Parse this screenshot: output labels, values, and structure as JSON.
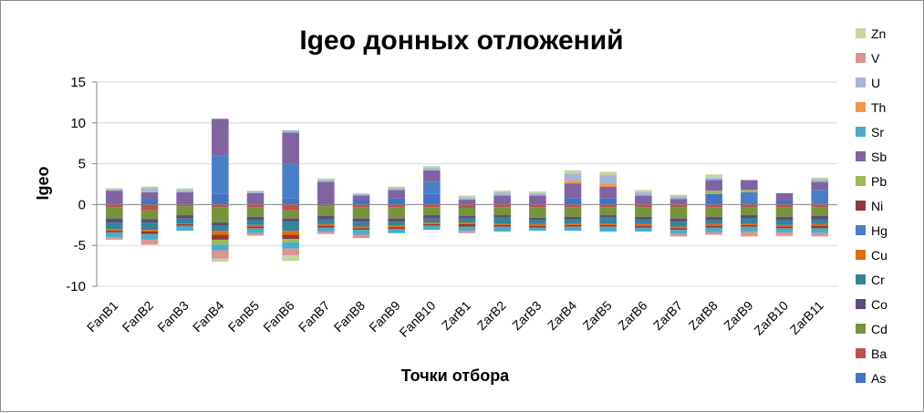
{
  "chart_data": {
    "type": "bar",
    "stacked": true,
    "title": "Igeo донных отложений",
    "xlabel": "Точки отбора",
    "ylabel": "Igeo",
    "ylim": [
      -10,
      15
    ],
    "yticks": [
      15,
      10,
      5,
      0,
      -5,
      -10
    ],
    "grid": true,
    "legend_position": "right",
    "categories": [
      "FanB1",
      "FanB2",
      "FanB3",
      "FanB4",
      "FanB5",
      "FanB6",
      "FanB7",
      "FanB8",
      "FanB9",
      "FanB10",
      "ZarB1",
      "ZarB2",
      "ZarB3",
      "ZarB4",
      "ZarB5",
      "ZarB6",
      "ZarB7",
      "ZarB8",
      "ZarB9",
      "ZarB10",
      "ZarB11"
    ],
    "series": [
      {
        "name": "As",
        "color": "#4472c4",
        "values": [
          0.0,
          0.6,
          0.0,
          1.3,
          0.0,
          0.8,
          0.0,
          0.6,
          0.8,
          1.3,
          0.0,
          0.0,
          0.0,
          0.8,
          0.8,
          0.0,
          0.0,
          1.3,
          0.0,
          0.5,
          0.0
        ]
      },
      {
        "name": "Ba",
        "color": "#c0504d",
        "values": [
          -0.3,
          -0.7,
          -0.2,
          -0.3,
          -0.3,
          -0.7,
          -0.2,
          -0.3,
          -0.3,
          -0.3,
          -0.4,
          -0.3,
          -0.3,
          -0.3,
          -0.3,
          -0.3,
          -0.3,
          -0.3,
          -0.3,
          -0.3,
          -0.3
        ]
      },
      {
        "name": "Cd",
        "color": "#77933c",
        "values": [
          -1.4,
          -1.1,
          -1.1,
          -1.9,
          -1.2,
          -1.0,
          -1.2,
          -1.4,
          -1.4,
          -1.0,
          -1.0,
          -1.0,
          -1.3,
          -1.2,
          -1.0,
          -1.2,
          -1.4,
          -1.2,
          -1.0,
          -1.2,
          -1.1
        ]
      },
      {
        "name": "Co",
        "color": "#604a7b",
        "values": [
          -0.5,
          -0.4,
          -0.4,
          -0.4,
          -0.4,
          -0.4,
          -0.4,
          -0.4,
          -0.4,
          -0.4,
          -0.3,
          -0.3,
          -0.3,
          -0.3,
          -0.3,
          -0.3,
          -0.4,
          -0.4,
          -0.4,
          -0.4,
          -0.4
        ]
      },
      {
        "name": "Cr",
        "color": "#31859c",
        "values": [
          -0.8,
          -0.9,
          -0.6,
          -0.6,
          -0.6,
          -1.1,
          -0.6,
          -0.6,
          -0.5,
          -0.5,
          -0.5,
          -0.7,
          -0.5,
          -0.5,
          -0.7,
          -0.6,
          -0.6,
          -0.5,
          -0.6,
          -0.6,
          -0.6
        ]
      },
      {
        "name": "Cu",
        "color": "#e46c0a",
        "values": [
          -0.2,
          -0.2,
          -0.1,
          -0.5,
          -0.2,
          -0.5,
          -0.2,
          -0.2,
          -0.2,
          -0.2,
          -0.2,
          -0.2,
          -0.2,
          -0.2,
          -0.2,
          -0.2,
          -0.2,
          -0.2,
          -0.2,
          -0.2,
          -0.2
        ]
      },
      {
        "name": "Hg",
        "color": "#4a7ec7",
        "values": [
          0.0,
          0.0,
          0.0,
          4.7,
          0.0,
          4.2,
          0.0,
          0.0,
          0.0,
          1.5,
          0.0,
          0.0,
          0.0,
          0.0,
          0.0,
          0.0,
          0.0,
          0.0,
          1.5,
          0.0,
          1.8
        ]
      },
      {
        "name": "Ni",
        "color": "#953735",
        "values": [
          -0.2,
          -0.3,
          -0.2,
          -0.6,
          -0.2,
          -0.5,
          -0.2,
          -0.2,
          -0.2,
          -0.2,
          -0.3,
          -0.2,
          -0.2,
          -0.2,
          -0.2,
          -0.2,
          -0.2,
          -0.2,
          -0.2,
          -0.2,
          -0.3
        ]
      },
      {
        "name": "Pb",
        "color": "#9bbb59",
        "values": [
          0.0,
          0.0,
          0.0,
          -0.6,
          0.0,
          -0.4,
          0.0,
          0.0,
          0.0,
          0.0,
          0.0,
          0.0,
          0.0,
          0.0,
          0.0,
          0.0,
          0.0,
          0.4,
          0.3,
          0.0,
          0.0
        ]
      },
      {
        "name": "Sb",
        "color": "#8064a2",
        "values": [
          1.7,
          0.9,
          1.5,
          4.5,
          1.4,
          3.8,
          2.8,
          0.5,
          1.0,
          1.4,
          0.6,
          1.1,
          1.1,
          1.8,
          1.4,
          1.1,
          0.7,
          1.3,
          1.2,
          0.9,
          1.0
        ]
      },
      {
        "name": "Sr",
        "color": "#4bacc6",
        "values": [
          -0.6,
          -0.7,
          -0.6,
          -0.7,
          -0.6,
          -0.8,
          -0.5,
          -0.6,
          -0.5,
          -0.5,
          -0.5,
          -0.6,
          -0.4,
          -0.5,
          -0.6,
          -0.5,
          -0.5,
          -0.6,
          -0.6,
          -0.5,
          -0.6
        ]
      },
      {
        "name": "Th",
        "color": "#f79646",
        "values": [
          0.0,
          0.0,
          0.0,
          0.0,
          0.0,
          0.0,
          0.0,
          0.0,
          0.0,
          0.0,
          0.0,
          0.0,
          0.0,
          0.3,
          0.4,
          0.0,
          0.0,
          0.0,
          0.0,
          0.0,
          0.0
        ]
      },
      {
        "name": "U",
        "color": "#a5b6da",
        "values": [
          0.2,
          0.5,
          0.3,
          0.0,
          0.2,
          0.3,
          0.2,
          0.2,
          0.2,
          0.3,
          0.3,
          0.4,
          0.3,
          0.9,
          1.0,
          0.4,
          0.3,
          0.3,
          0.0,
          0.0,
          0.3
        ]
      },
      {
        "name": "V",
        "color": "#d99694",
        "values": [
          -0.3,
          -0.6,
          0.0,
          -1.0,
          -0.3,
          -0.8,
          -0.3,
          -0.4,
          0.0,
          0.0,
          -0.3,
          0.0,
          0.0,
          0.0,
          0.0,
          0.0,
          -0.3,
          -0.3,
          -0.6,
          -0.4,
          -0.4
        ]
      },
      {
        "name": "Zn",
        "color": "#c3d69b",
        "values": [
          0.1,
          0.2,
          0.2,
          0.0,
          0.1,
          0.0,
          0.2,
          0.1,
          0.2,
          0.2,
          0.2,
          0.2,
          0.2,
          0.4,
          0.4,
          0.3,
          0.2,
          0.4,
          0.0,
          0.0,
          0.2
        ]
      }
    ],
    "negative_extra": {
      "Zn": [
        0,
        0,
        0,
        -0.4,
        0,
        -0.7,
        0,
        0,
        0,
        0,
        0,
        0,
        0,
        0,
        0,
        0,
        0,
        0,
        0,
        -0.1,
        0
      ]
    }
  }
}
